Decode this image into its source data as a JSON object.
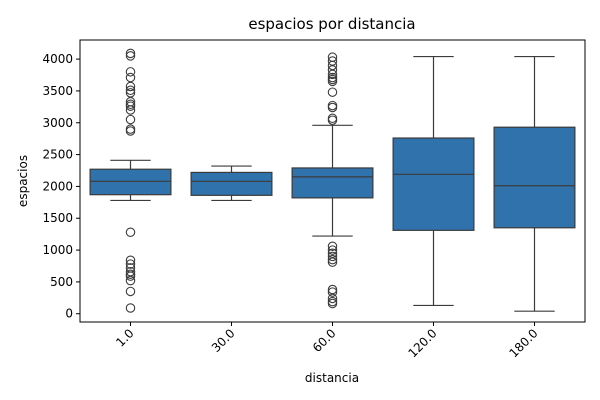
{
  "chart_data": {
    "type": "box",
    "title": "espacios por distancia",
    "xlabel": "distancia",
    "ylabel": "espacios",
    "categories": [
      "1.0",
      "30.0",
      "60.0",
      "120.0",
      "180.0"
    ],
    "ylim": [
      -130,
      4300
    ],
    "yticks": [
      0,
      500,
      1000,
      1500,
      2000,
      2500,
      3000,
      3500,
      4000
    ],
    "grid": false,
    "colors": {
      "box_fill": "#2f72ac",
      "box_edge": "#3b3b3b",
      "whisker": "#3b3b3b",
      "outlier_edge": "#3b3b3b"
    },
    "boxes": [
      {
        "category": "1.0",
        "q1": 1870,
        "median": 2080,
        "q3": 2270,
        "whisker_low": 1780,
        "whisker_high": 2410,
        "outliers": [
          4090,
          4050,
          3800,
          3710,
          3570,
          3510,
          3470,
          3330,
          3290,
          3260,
          3200,
          3050,
          2900,
          2870,
          1280,
          840,
          780,
          720,
          660,
          620,
          590,
          520,
          350,
          90
        ]
      },
      {
        "category": "30.0",
        "q1": 1860,
        "median": 2080,
        "q3": 2220,
        "whisker_low": 1780,
        "whisker_high": 2320,
        "outliers": []
      },
      {
        "category": "60.0",
        "q1": 1820,
        "median": 2150,
        "q3": 2290,
        "whisker_low": 1220,
        "whisker_high": 2960,
        "outliers": [
          4030,
          3970,
          3900,
          3830,
          3760,
          3710,
          3680,
          3650,
          3480,
          3270,
          3240,
          3070,
          3040,
          1060,
          1000,
          950,
          900,
          850,
          810,
          380,
          340,
          240,
          190,
          160
        ]
      },
      {
        "category": "120.0",
        "q1": 1310,
        "median": 2190,
        "q3": 2760,
        "whisker_low": 130,
        "whisker_high": 4040,
        "outliers": []
      },
      {
        "category": "180.0",
        "q1": 1350,
        "median": 2010,
        "q3": 2930,
        "whisker_low": 40,
        "whisker_high": 4040,
        "outliers": []
      }
    ]
  }
}
